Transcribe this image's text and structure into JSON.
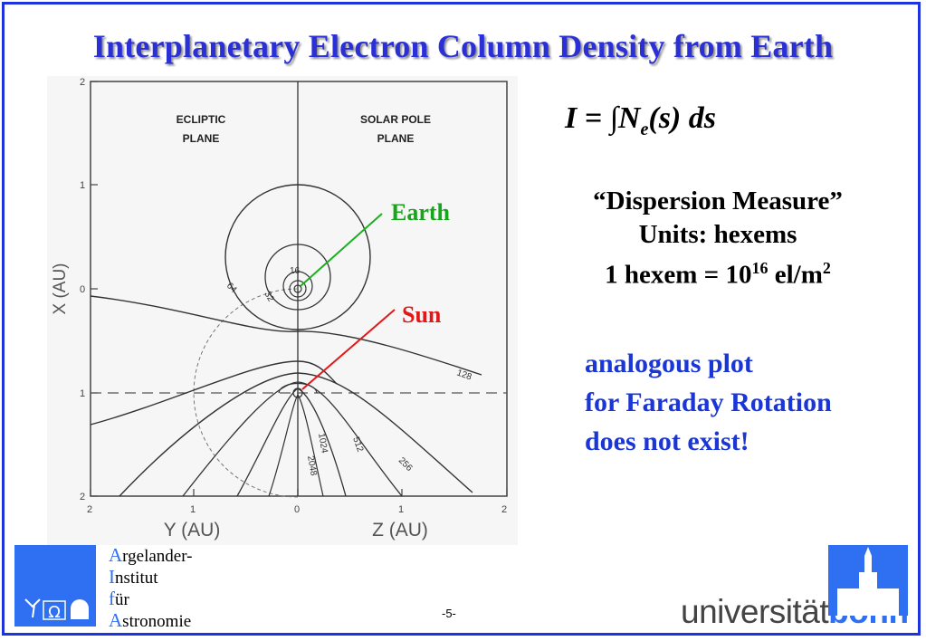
{
  "title": "Interplanetary Electron Column Density from Earth",
  "formula": {
    "lhs": "I =",
    "integral": "∫N",
    "sub": "e",
    "rest": "(s) ds"
  },
  "dispersion": {
    "line1": "“Dispersion Measure”",
    "line2": "Units: hexems",
    "line3_pre": "1 hexem = 10",
    "line3_exp": "16",
    "line3_mid": " el/m",
    "line3_sq": "2"
  },
  "note": {
    "line1": "analogous plot",
    "line2": "for Faraday Rotation",
    "line3": "does not exist!"
  },
  "labels": {
    "earth": "Earth",
    "sun": "Sun"
  },
  "plot": {
    "left_plane": "ECLIPTIC PLANE",
    "left_plane_1": "ECLIPTIC",
    "left_plane_2": "PLANE",
    "right_plane_1": "SOLAR POLE",
    "right_plane_2": "PLANE",
    "y_axis_label": "X (AU)",
    "x_axis_label_left": "Y (AU)",
    "x_axis_label_right": "Z (AU)",
    "y_ticks": [
      "2",
      "1",
      "0",
      "1",
      "2"
    ],
    "x_ticks": [
      "2",
      "1",
      "0",
      "1",
      "2"
    ],
    "contours": [
      "16",
      "32",
      "64",
      "128",
      "256",
      "512",
      "1024",
      "2048"
    ]
  },
  "logos": {
    "aifa_lines": [
      "Argelander-",
      "Institut",
      "für",
      "Astronomie"
    ],
    "aifa_caps": [
      "A",
      "I",
      "f",
      "A"
    ],
    "aifa_rest": [
      "rgelander-",
      "nstitut",
      "ür",
      "stronomie"
    ],
    "aifa_symbols": "Ω",
    "uni_part1": "universität",
    "uni_part2": "bonn"
  },
  "page_number": "-5-",
  "colors": {
    "title": "#2a2fd6",
    "note": "#1a36d6",
    "earth": "#17a51b",
    "sun": "#e11818",
    "frame": "#1d33e0"
  }
}
